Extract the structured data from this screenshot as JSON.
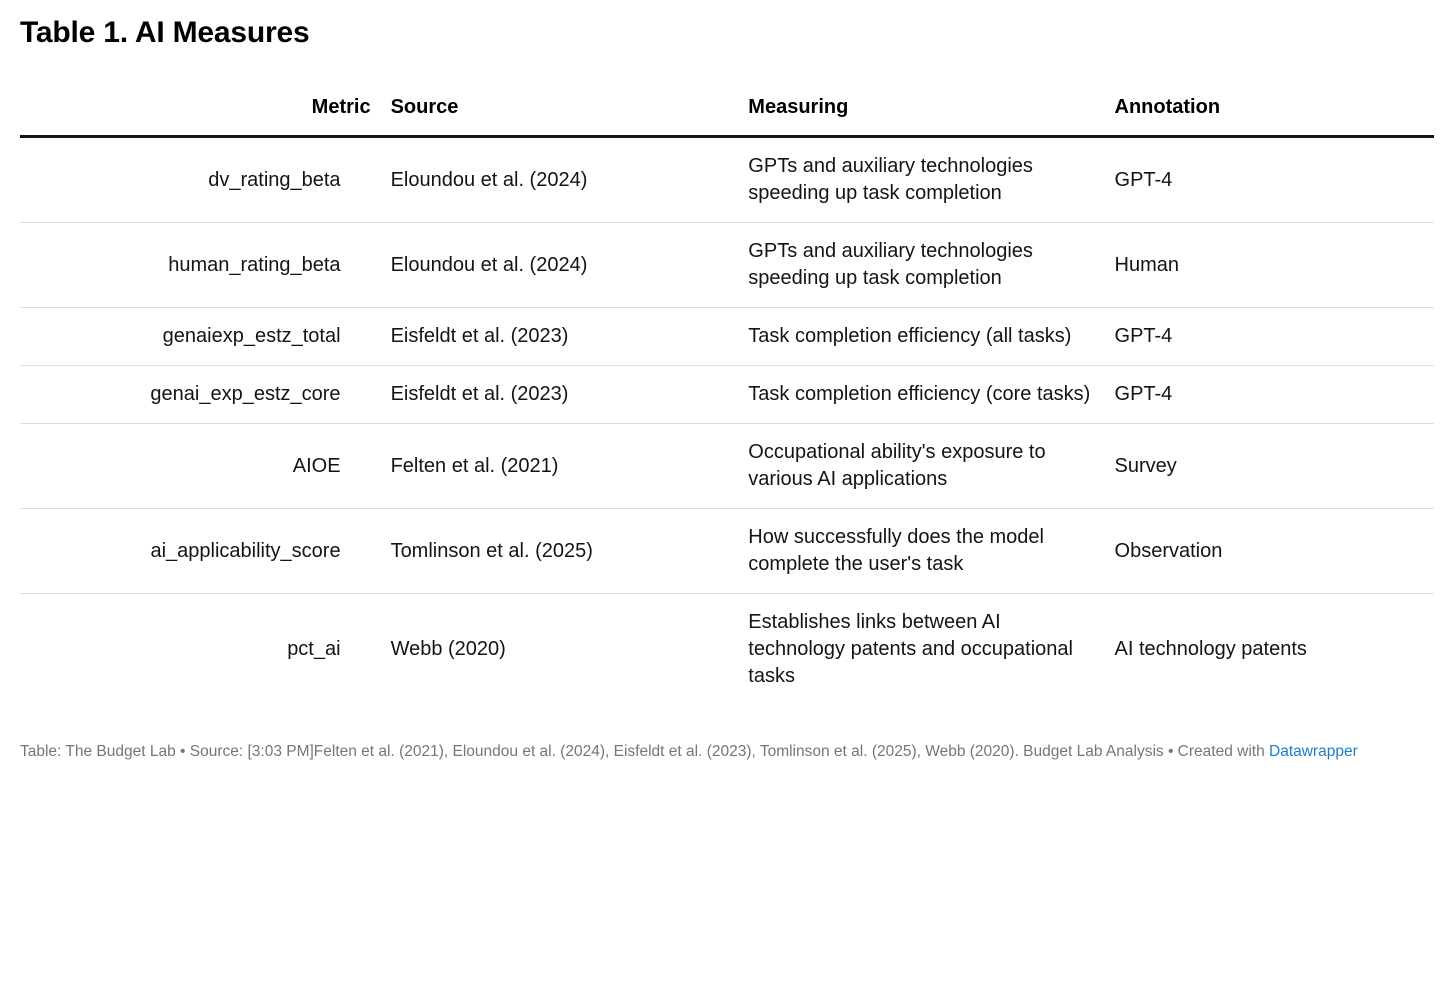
{
  "title": "Table 1. AI Measures",
  "table": {
    "columns": [
      {
        "label": "Metric"
      },
      {
        "label": "Source"
      },
      {
        "label": "Measuring"
      },
      {
        "label": "Annotation"
      }
    ],
    "rows": [
      {
        "metric": "dv_rating_beta",
        "source": "Eloundou et al. (2024)",
        "measuring": "GPTs and auxiliary technologies speeding up task completion",
        "annotation": "GPT-4"
      },
      {
        "metric": "human_rating_beta",
        "source": "Eloundou et al. (2024)",
        "measuring": "GPTs and auxiliary technologies speeding up task completion",
        "annotation": "Human"
      },
      {
        "metric": "genaiexp_estz_total",
        "source": "Eisfeldt et al. (2023)",
        "measuring": "Task completion efficiency (all tasks)",
        "annotation": "GPT-4"
      },
      {
        "metric": "genai_exp_estz_core",
        "source": "Eisfeldt et al. (2023)",
        "measuring": "Task completion efficiency (core tasks)",
        "annotation": "GPT-4"
      },
      {
        "metric": "AIOE",
        "source": "Felten et al. (2021)",
        "measuring": "Occupational ability's exposure to various AI applications",
        "annotation": "Survey"
      },
      {
        "metric": "ai_applicability_score",
        "source": "Tomlinson et al. (2025)",
        "measuring": "How successfully does the model complete the user's task",
        "annotation": "Observation"
      },
      {
        "metric": "pct_ai",
        "source": "Webb (2020)",
        "measuring": "Establishes links between AI technology patents and occupational tasks",
        "annotation": "AI technology patents"
      }
    ]
  },
  "footer": {
    "prefix": "Table: The Budget Lab • Source: [3:03 PM]Felten et al. (2021), Eloundou et al. (2024), Eisfeldt et al. (2023), Tomlinson et al. (2025), Webb (2020). Budget Lab Analysis • Created with ",
    "link_label": "Datawrapper"
  },
  "colors": {
    "header_rule": "#141414",
    "row_separator": "#dddddd",
    "footer_text": "#767676",
    "link_blue": "#1c7dc9"
  },
  "chart_data": {
    "type": "table",
    "title": "Table 1. AI Measures",
    "columns": [
      "Metric",
      "Source",
      "Measuring",
      "Annotation"
    ],
    "rows": [
      [
        "dv_rating_beta",
        "Eloundou et al. (2024)",
        "GPTs and auxiliary technologies speeding up task completion",
        "GPT-4"
      ],
      [
        "human_rating_beta",
        "Eloundou et al. (2024)",
        "GPTs and auxiliary technologies speeding up task completion",
        "Human"
      ],
      [
        "genaiexp_estz_total",
        "Eisfeldt et al. (2023)",
        "Task completion efficiency (all tasks)",
        "GPT-4"
      ],
      [
        "genai_exp_estz_core",
        "Eisfeldt et al. (2023)",
        "Task completion efficiency (core tasks)",
        "GPT-4"
      ],
      [
        "AIOE",
        "Felten et al. (2021)",
        "Occupational ability's exposure to various AI applications",
        "Survey"
      ],
      [
        "ai_applicability_score",
        "Tomlinson et al. (2025)",
        "How successfully does the model complete the user's task",
        "Observation"
      ],
      [
        "pct_ai",
        "Webb (2020)",
        "Establishes links between AI technology patents and occupational tasks",
        "AI technology patents"
      ]
    ]
  }
}
